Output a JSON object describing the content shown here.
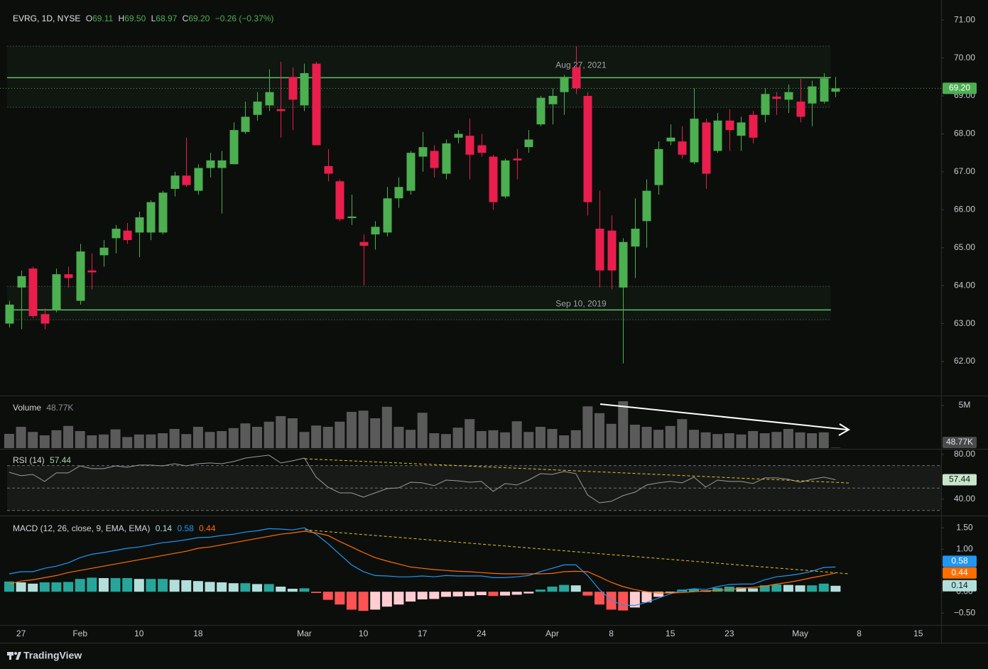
{
  "header": {
    "symbol": "EVRG, 1D, NYSE",
    "ohlc": [
      {
        "key": "O",
        "value": "69.11"
      },
      {
        "key": "H",
        "value": "69.50"
      },
      {
        "key": "L",
        "value": "68.97"
      },
      {
        "key": "C",
        "value": "69.20"
      }
    ],
    "change": "−0.26 (−0.37%)"
  },
  "footer": {
    "brand": "TradingView"
  },
  "chart_data": {
    "type": "candlestick",
    "xlim": [
      -0.78,
      78.94
    ],
    "xticks": [
      {
        "value": 1,
        "label": "27"
      },
      {
        "value": 6,
        "label": "Feb"
      },
      {
        "value": 11,
        "label": "10"
      },
      {
        "value": 16,
        "label": "18"
      },
      {
        "value": 25,
        "label": "Mar"
      },
      {
        "value": 30,
        "label": "10"
      },
      {
        "value": 35,
        "label": "17"
      },
      {
        "value": 40,
        "label": "24"
      },
      {
        "value": 46,
        "label": "Apr"
      },
      {
        "value": 51,
        "label": "8"
      },
      {
        "value": 56,
        "label": "15"
      },
      {
        "value": 61,
        "label": "23"
      },
      {
        "value": 67,
        "label": "May"
      },
      {
        "value": 72,
        "label": "8"
      },
      {
        "value": 77,
        "label": "15"
      }
    ],
    "ylim": [
      61.14,
      71.34
    ],
    "yticks": [
      {
        "value": 62,
        "label": "62.00"
      },
      {
        "value": 63,
        "label": "63.00"
      },
      {
        "value": 64,
        "label": "64.00"
      },
      {
        "value": 65,
        "label": "65.00"
      },
      {
        "value": 66,
        "label": "66.00"
      },
      {
        "value": 67,
        "label": "67.00"
      },
      {
        "value": 68,
        "label": "68.00"
      },
      {
        "value": 69,
        "label": "69.00"
      },
      {
        "value": 70,
        "label": "70.00"
      },
      {
        "value": 71,
        "label": "71.00"
      }
    ],
    "up_color": "#4caf50",
    "down_color": "#e91e4d",
    "open": [
      63.0,
      63.95,
      64.45,
      63.25,
      63.35,
      64.3,
      63.6,
      64.4,
      64.8,
      65.25,
      65.45,
      65.4,
      65.4,
      65.4,
      66.55,
      66.9,
      66.5,
      67.1,
      67.1,
      67.2,
      68.05,
      68.5,
      68.75,
      68.65,
      69.5,
      68.75,
      69.85,
      67.15,
      66.75,
      65.78,
      65.15,
      65.35,
      65.4,
      66.3,
      66.5,
      67.4,
      67.55,
      66.95,
      67.9,
      67.95,
      67.7,
      67.4,
      66.35,
      67.35,
      67.65,
      68.25,
      68.78,
      69.1,
      69.75,
      69.0,
      65.5,
      65.45,
      63.95,
      65.03,
      65.7,
      66.65,
      67.8,
      67.8,
      67.25,
      68.3,
      67.55,
      68.35,
      67.95,
      68.5,
      68.5,
      68.98,
      68.9,
      68.85,
      68.8,
      68.85,
      69.11
    ],
    "high": [
      63.6,
      64.4,
      64.5,
      63.4,
      64.45,
      64.5,
      65.1,
      64.85,
      65.2,
      65.6,
      65.65,
      65.95,
      66.25,
      66.5,
      67.0,
      67.9,
      67.2,
      67.5,
      67.55,
      68.3,
      68.85,
      69.1,
      69.7,
      69.9,
      69.75,
      69.85,
      69.9,
      67.6,
      66.8,
      66.4,
      65.35,
      65.7,
      66.6,
      66.85,
      67.55,
      68.05,
      67.7,
      67.85,
      68.1,
      68.4,
      68.0,
      67.45,
      67.35,
      67.6,
      68.1,
      69.0,
      69.2,
      69.55,
      70.3,
      69.1,
      66.5,
      65.85,
      65.25,
      66.3,
      66.8,
      67.8,
      68.25,
      68.2,
      69.2,
      68.4,
      68.55,
      68.65,
      68.45,
      68.6,
      69.2,
      69.1,
      69.3,
      69.45,
      69.4,
      69.6,
      69.5
    ],
    "low": [
      62.9,
      62.85,
      63.15,
      62.85,
      63.3,
      63.95,
      63.5,
      63.9,
      64.5,
      64.85,
      65.1,
      64.75,
      65.2,
      65.35,
      66.35,
      66.6,
      66.4,
      66.85,
      65.9,
      67.2,
      68.0,
      68.35,
      68.6,
      67.9,
      68.1,
      68.6,
      67.7,
      66.75,
      65.7,
      65.6,
      64.0,
      64.95,
      65.3,
      66.05,
      66.4,
      67.0,
      66.85,
      66.8,
      67.75,
      66.8,
      67.4,
      66.0,
      66.3,
      66.8,
      67.5,
      68.2,
      68.25,
      68.5,
      69.05,
      65.85,
      63.95,
      63.9,
      61.95,
      64.2,
      65.0,
      66.4,
      67.7,
      67.35,
      67.2,
      66.55,
      67.5,
      67.55,
      67.55,
      67.75,
      68.3,
      68.5,
      68.55,
      68.3,
      68.2,
      68.8,
      68.97
    ],
    "close": [
      63.5,
      64.25,
      63.2,
      63.0,
      64.3,
      64.2,
      64.9,
      64.35,
      65.0,
      65.5,
      65.2,
      65.8,
      66.2,
      66.45,
      66.9,
      66.65,
      67.1,
      67.3,
      67.3,
      68.1,
      68.45,
      68.85,
      69.1,
      68.6,
      68.9,
      69.6,
      67.7,
      66.95,
      65.75,
      65.82,
      65.05,
      65.55,
      66.3,
      66.6,
      67.5,
      67.65,
      67.1,
      67.75,
      68.0,
      67.45,
      67.5,
      66.2,
      67.3,
      67.3,
      67.85,
      68.95,
      69.0,
      69.5,
      69.2,
      66.2,
      64.4,
      64.4,
      65.15,
      65.5,
      66.5,
      67.6,
      67.9,
      67.45,
      68.4,
      66.95,
      68.35,
      68.1,
      68.3,
      67.9,
      69.05,
      68.92,
      69.1,
      68.45,
      69.25,
      69.46,
      69.2
    ],
    "last_price": {
      "value": 69.2,
      "label": "69.20"
    },
    "levels": [
      {
        "label": "Aug 27, 2021",
        "value": 69.48,
        "band": [
          68.7,
          70.31
        ]
      },
      {
        "label": "Sep 10, 2019",
        "value": 63.36,
        "band": [
          63.1,
          63.98
        ]
      }
    ],
    "volume": {
      "type": "bar",
      "title": "Volume",
      "color": "#5a5a5a",
      "ylim": [
        0,
        6080000
      ],
      "yticks": [
        {
          "value": 5000000,
          "label": "5M"
        }
      ],
      "values": [
        1670000,
        2500000,
        1900000,
        1500000,
        2100000,
        2600000,
        2000000,
        1500000,
        1600000,
        2200000,
        1300000,
        1600000,
        1600000,
        1750000,
        2250000,
        1650000,
        2500000,
        1900000,
        2000000,
        2350000,
        2900000,
        2500000,
        3100000,
        3750000,
        3500000,
        1900000,
        2650000,
        2500000,
        3100000,
        4250000,
        4400000,
        3500000,
        4850000,
        2500000,
        2150000,
        4150000,
        1750000,
        1650000,
        2400000,
        3400000,
        2000000,
        2100000,
        1850000,
        3150000,
        1900000,
        2500000,
        2250000,
        1500000,
        2100000,
        4900000,
        4100000,
        2850000,
        5500000,
        2750000,
        2500000,
        2150000,
        2600000,
        3400000,
        2150000,
        1850000,
        1650000,
        1750000,
        1600000,
        2000000,
        1750000,
        1900000,
        2250000,
        1850000,
        1750000,
        1850000,
        48770
      ],
      "last_label": "48.77K"
    },
    "rsi": {
      "type": "line",
      "title": "RSI (14)",
      "color": "#9a9a9a",
      "ylim": [
        26,
        84.4
      ],
      "yticks": [
        {
          "value": 80,
          "label": "80.00"
        },
        {
          "value": 40,
          "label": "40.00"
        }
      ],
      "bands": [
        70,
        50,
        30
      ],
      "values": [
        64.1,
        61.0,
        62.2,
        55.9,
        63.5,
        63.5,
        69.8,
        67.3,
        67.3,
        69.8,
        68.6,
        70.5,
        70.5,
        69.8,
        71.7,
        69.8,
        71.7,
        72.4,
        71.7,
        73.7,
        76.8,
        78.1,
        79.4,
        72.4,
        74.3,
        76.8,
        59.7,
        50.8,
        45.7,
        45.7,
        41.9,
        45.7,
        49.5,
        50.2,
        55.2,
        54.6,
        52.1,
        57.1,
        56.5,
        55.2,
        55.9,
        47.0,
        54.0,
        52.7,
        57.1,
        62.9,
        62.2,
        64.8,
        62.9,
        43.8,
        36.8,
        38.1,
        43.2,
        46.3,
        52.7,
        54.6,
        55.9,
        54.6,
        59.7,
        50.8,
        57.1,
        55.9,
        55.9,
        54.0,
        59.1,
        59.1,
        57.8,
        55.2,
        57.8,
        59.7,
        57.44
      ]
    },
    "macd": {
      "type": "line",
      "title": "MACD (12, 26, close, 9, EMA, EMA)",
      "ylim": [
        -0.78,
        1.77
      ],
      "yticks": [
        {
          "value": 1.5,
          "label": "1.50"
        },
        {
          "value": 1,
          "label": "1.00"
        },
        {
          "value": 0,
          "label": "0.00"
        },
        {
          "value": -0.5,
          "label": "−0.50"
        }
      ],
      "histogram": {
        "colors": [
          "#26a69a",
          "#b2dfdb",
          "#ff5252",
          "#ffcdd2"
        ],
        "values": [
          0.24,
          0.22,
          0.19,
          0.22,
          0.22,
          0.23,
          0.3,
          0.33,
          0.32,
          0.32,
          0.32,
          0.3,
          0.3,
          0.3,
          0.28,
          0.27,
          0.25,
          0.23,
          0.22,
          0.2,
          0.2,
          0.18,
          0.18,
          0.12,
          0.07,
          0.08,
          -0.03,
          -0.19,
          -0.3,
          -0.42,
          -0.45,
          -0.42,
          -0.35,
          -0.3,
          -0.23,
          -0.18,
          -0.17,
          -0.12,
          -0.11,
          -0.1,
          -0.08,
          -0.1,
          -0.09,
          -0.07,
          -0.04,
          0.05,
          0.12,
          0.16,
          0.15,
          -0.09,
          -0.3,
          -0.42,
          -0.44,
          -0.37,
          -0.25,
          -0.12,
          -0.02,
          0.05,
          0.07,
          0.03,
          0.09,
          0.12,
          0.1,
          0.08,
          0.15,
          0.17,
          0.16,
          0.15,
          0.15,
          0.19,
          0.14
        ]
      },
      "macd_line": {
        "color": "#2196f3",
        "values": [
          0.42,
          0.47,
          0.47,
          0.55,
          0.6,
          0.68,
          0.8,
          0.88,
          0.92,
          0.97,
          1.02,
          1.05,
          1.1,
          1.15,
          1.18,
          1.22,
          1.27,
          1.28,
          1.32,
          1.35,
          1.4,
          1.43,
          1.48,
          1.47,
          1.45,
          1.5,
          1.35,
          1.13,
          0.88,
          0.63,
          0.47,
          0.38,
          0.37,
          0.35,
          0.35,
          0.37,
          0.35,
          0.38,
          0.37,
          0.37,
          0.37,
          0.33,
          0.33,
          0.35,
          0.38,
          0.47,
          0.55,
          0.63,
          0.63,
          0.38,
          0.05,
          -0.2,
          -0.32,
          -0.32,
          -0.25,
          -0.15,
          -0.05,
          0.03,
          0.07,
          0.05,
          0.12,
          0.17,
          0.18,
          0.18,
          0.28,
          0.35,
          0.38,
          0.42,
          0.48,
          0.57,
          0.58
        ]
      },
      "signal": {
        "color": "#ff6d00",
        "values": [
          0.18,
          0.25,
          0.28,
          0.33,
          0.38,
          0.45,
          0.5,
          0.55,
          0.6,
          0.65,
          0.7,
          0.75,
          0.8,
          0.85,
          0.9,
          0.95,
          1.02,
          1.05,
          1.1,
          1.15,
          1.2,
          1.25,
          1.3,
          1.35,
          1.38,
          1.42,
          1.38,
          1.32,
          1.18,
          1.05,
          0.92,
          0.8,
          0.72,
          0.65,
          0.58,
          0.55,
          0.52,
          0.5,
          0.48,
          0.47,
          0.45,
          0.43,
          0.42,
          0.42,
          0.42,
          0.42,
          0.43,
          0.47,
          0.48,
          0.47,
          0.35,
          0.22,
          0.12,
          0.05,
          0.0,
          -0.03,
          -0.03,
          -0.02,
          0.0,
          0.02,
          0.03,
          0.05,
          0.08,
          0.1,
          0.13,
          0.18,
          0.22,
          0.27,
          0.33,
          0.38,
          0.44
        ]
      }
    }
  }
}
